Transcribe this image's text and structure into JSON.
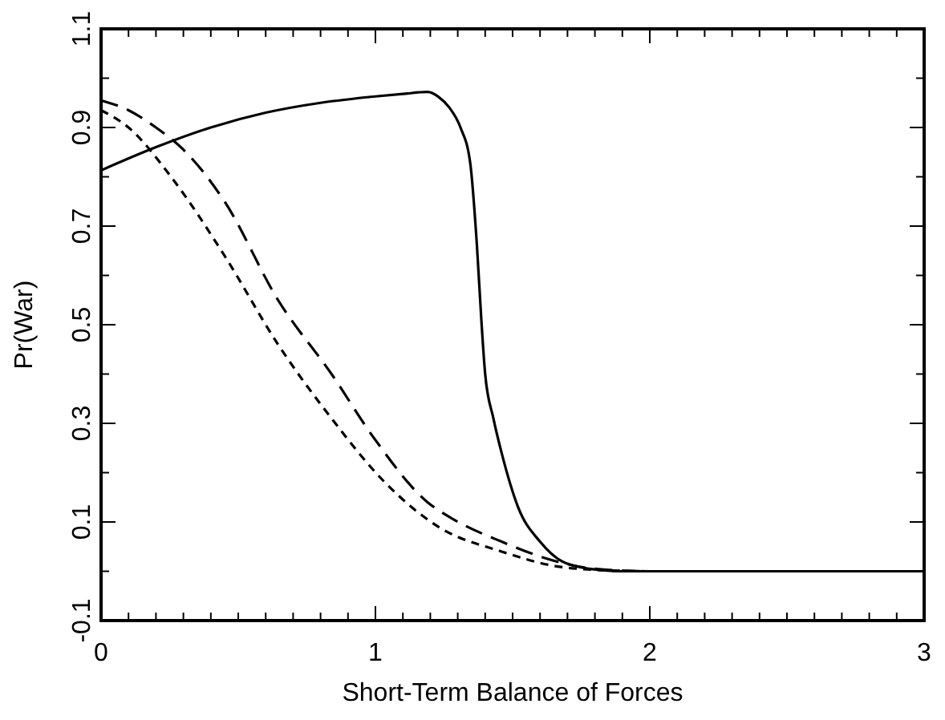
{
  "chart_data": {
    "type": "line",
    "xlabel": "Short-Term Balance of Forces",
    "ylabel": "Pr(War)",
    "xlim": [
      0,
      3
    ],
    "ylim": [
      -0.1,
      1.1
    ],
    "xticks": [
      0,
      {
        "value": 0.1,
        "label": null
      },
      {
        "value": 0.2,
        "label": null
      },
      {
        "value": 0.3,
        "label": null
      },
      {
        "value": 0.4,
        "label": null
      },
      {
        "value": 0.5,
        "label": null
      },
      {
        "value": 0.6,
        "label": null
      },
      {
        "value": 0.7,
        "label": null
      },
      {
        "value": 0.8,
        "label": null
      },
      {
        "value": 0.9,
        "label": null
      },
      1,
      {
        "value": 1.1,
        "label": null
      },
      {
        "value": 1.2,
        "label": null
      },
      {
        "value": 1.3,
        "label": null
      },
      {
        "value": 1.4,
        "label": null
      },
      {
        "value": 1.5,
        "label": null
      },
      {
        "value": 1.6,
        "label": null
      },
      {
        "value": 1.7,
        "label": null
      },
      {
        "value": 1.8,
        "label": null
      },
      {
        "value": 1.9,
        "label": null
      },
      2,
      {
        "value": 2.1,
        "label": null
      },
      {
        "value": 2.2,
        "label": null
      },
      {
        "value": 2.3,
        "label": null
      },
      {
        "value": 2.4,
        "label": null
      },
      {
        "value": 2.5,
        "label": null
      },
      {
        "value": 2.6,
        "label": null
      },
      {
        "value": 2.7,
        "label": null
      },
      {
        "value": 2.8,
        "label": null
      },
      {
        "value": 2.9,
        "label": null
      },
      3
    ],
    "yticks": [
      -0.1,
      {
        "value": 0,
        "label": null
      },
      0.1,
      {
        "value": 0.2,
        "label": null
      },
      0.3,
      {
        "value": 0.4,
        "label": null
      },
      0.5,
      {
        "value": 0.6,
        "label": null
      },
      0.7,
      {
        "value": 0.8,
        "label": null
      },
      0.9,
      {
        "value": 1.0,
        "label": null
      },
      1.1
    ],
    "grid": false,
    "series": [
      {
        "color": "#000000",
        "line_style": "solid",
        "x": [
          0,
          0.2,
          0.4,
          0.6,
          0.8,
          1.0,
          1.1,
          1.19,
          1.23,
          1.27,
          1.31,
          1.345,
          1.37,
          1.386,
          1.4,
          1.43,
          1.46,
          1.52,
          1.6,
          1.68,
          1.78,
          1.9,
          2.2,
          2.6,
          3.0
        ],
        "values": [
          0.813,
          0.86,
          0.9,
          0.93,
          0.95,
          0.963,
          0.968,
          0.972,
          0.962,
          0.94,
          0.9,
          0.83,
          0.66,
          0.51,
          0.4,
          0.31,
          0.24,
          0.13,
          0.06,
          0.02,
          0.005,
          0,
          0,
          0,
          0
        ]
      },
      {
        "color": "#000000",
        "line_style": "dashed",
        "x": [
          0,
          0.1,
          0.2,
          0.3,
          0.45,
          0.645,
          0.84,
          0.995,
          1.19,
          1.27,
          1.46,
          1.66,
          1.8,
          2.0,
          2.5,
          3.0
        ],
        "values": [
          0.955,
          0.935,
          0.9,
          0.855,
          0.75,
          0.55,
          0.4,
          0.27,
          0.14,
          0.11,
          0.06,
          0.02,
          0.005,
          0,
          0,
          0
        ]
      },
      {
        "color": "#000000",
        "line_style": "dotted",
        "x": [
          0,
          0.1,
          0.255,
          0.45,
          0.645,
          0.84,
          1.035,
          1.23,
          1.46,
          1.66,
          1.8,
          2.0,
          2.5,
          3.0
        ],
        "values": [
          0.935,
          0.9,
          0.8,
          0.64,
          0.46,
          0.31,
          0.18,
          0.09,
          0.04,
          0.01,
          0.003,
          0,
          0,
          0
        ]
      }
    ]
  }
}
